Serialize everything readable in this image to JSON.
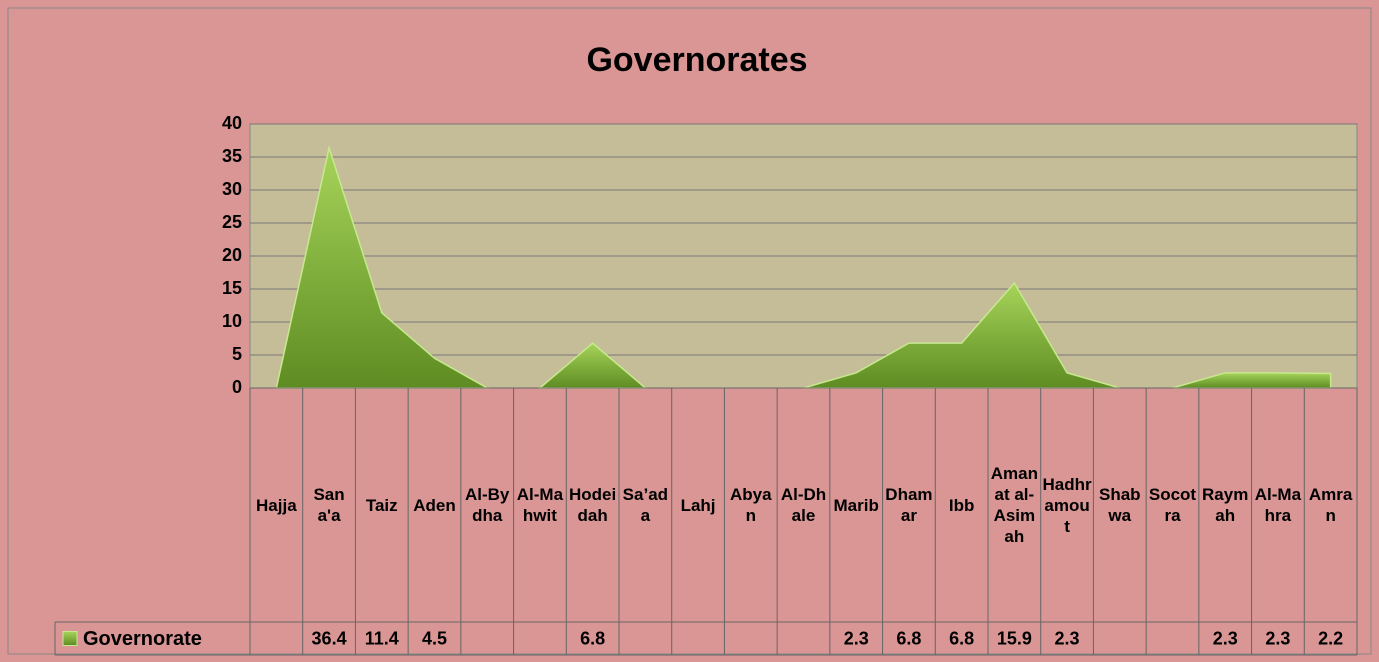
{
  "chart_data": {
    "type": "area",
    "title": "Governorates",
    "categories": [
      "Hajja",
      "Sana'a",
      "Taiz",
      "Aden",
      "Al-Bydha",
      "Al-Mahwit",
      "Hodeidah",
      "Sa’ada",
      "Lahj",
      "Abyan",
      "Al-Dhale",
      "Marib",
      "Dhamar",
      "Ibb",
      "Amanat al-Asimah",
      "Hadhramout",
      "Shabwa",
      "Socotra",
      "Raymah",
      "Al-Mahra",
      "Amran"
    ],
    "series": [
      {
        "name": "Governorate",
        "color": "#7aa832",
        "values": [
          null,
          36.4,
          11.4,
          4.5,
          null,
          null,
          6.8,
          null,
          null,
          null,
          null,
          2.3,
          6.8,
          6.8,
          15.9,
          2.3,
          null,
          null,
          2.3,
          2.3,
          2.2
        ]
      }
    ],
    "ylim": [
      0,
      40
    ],
    "yticks": [
      0,
      5,
      10,
      15,
      20,
      25,
      30,
      35,
      40
    ],
    "grid": true,
    "data_table": true
  }
}
